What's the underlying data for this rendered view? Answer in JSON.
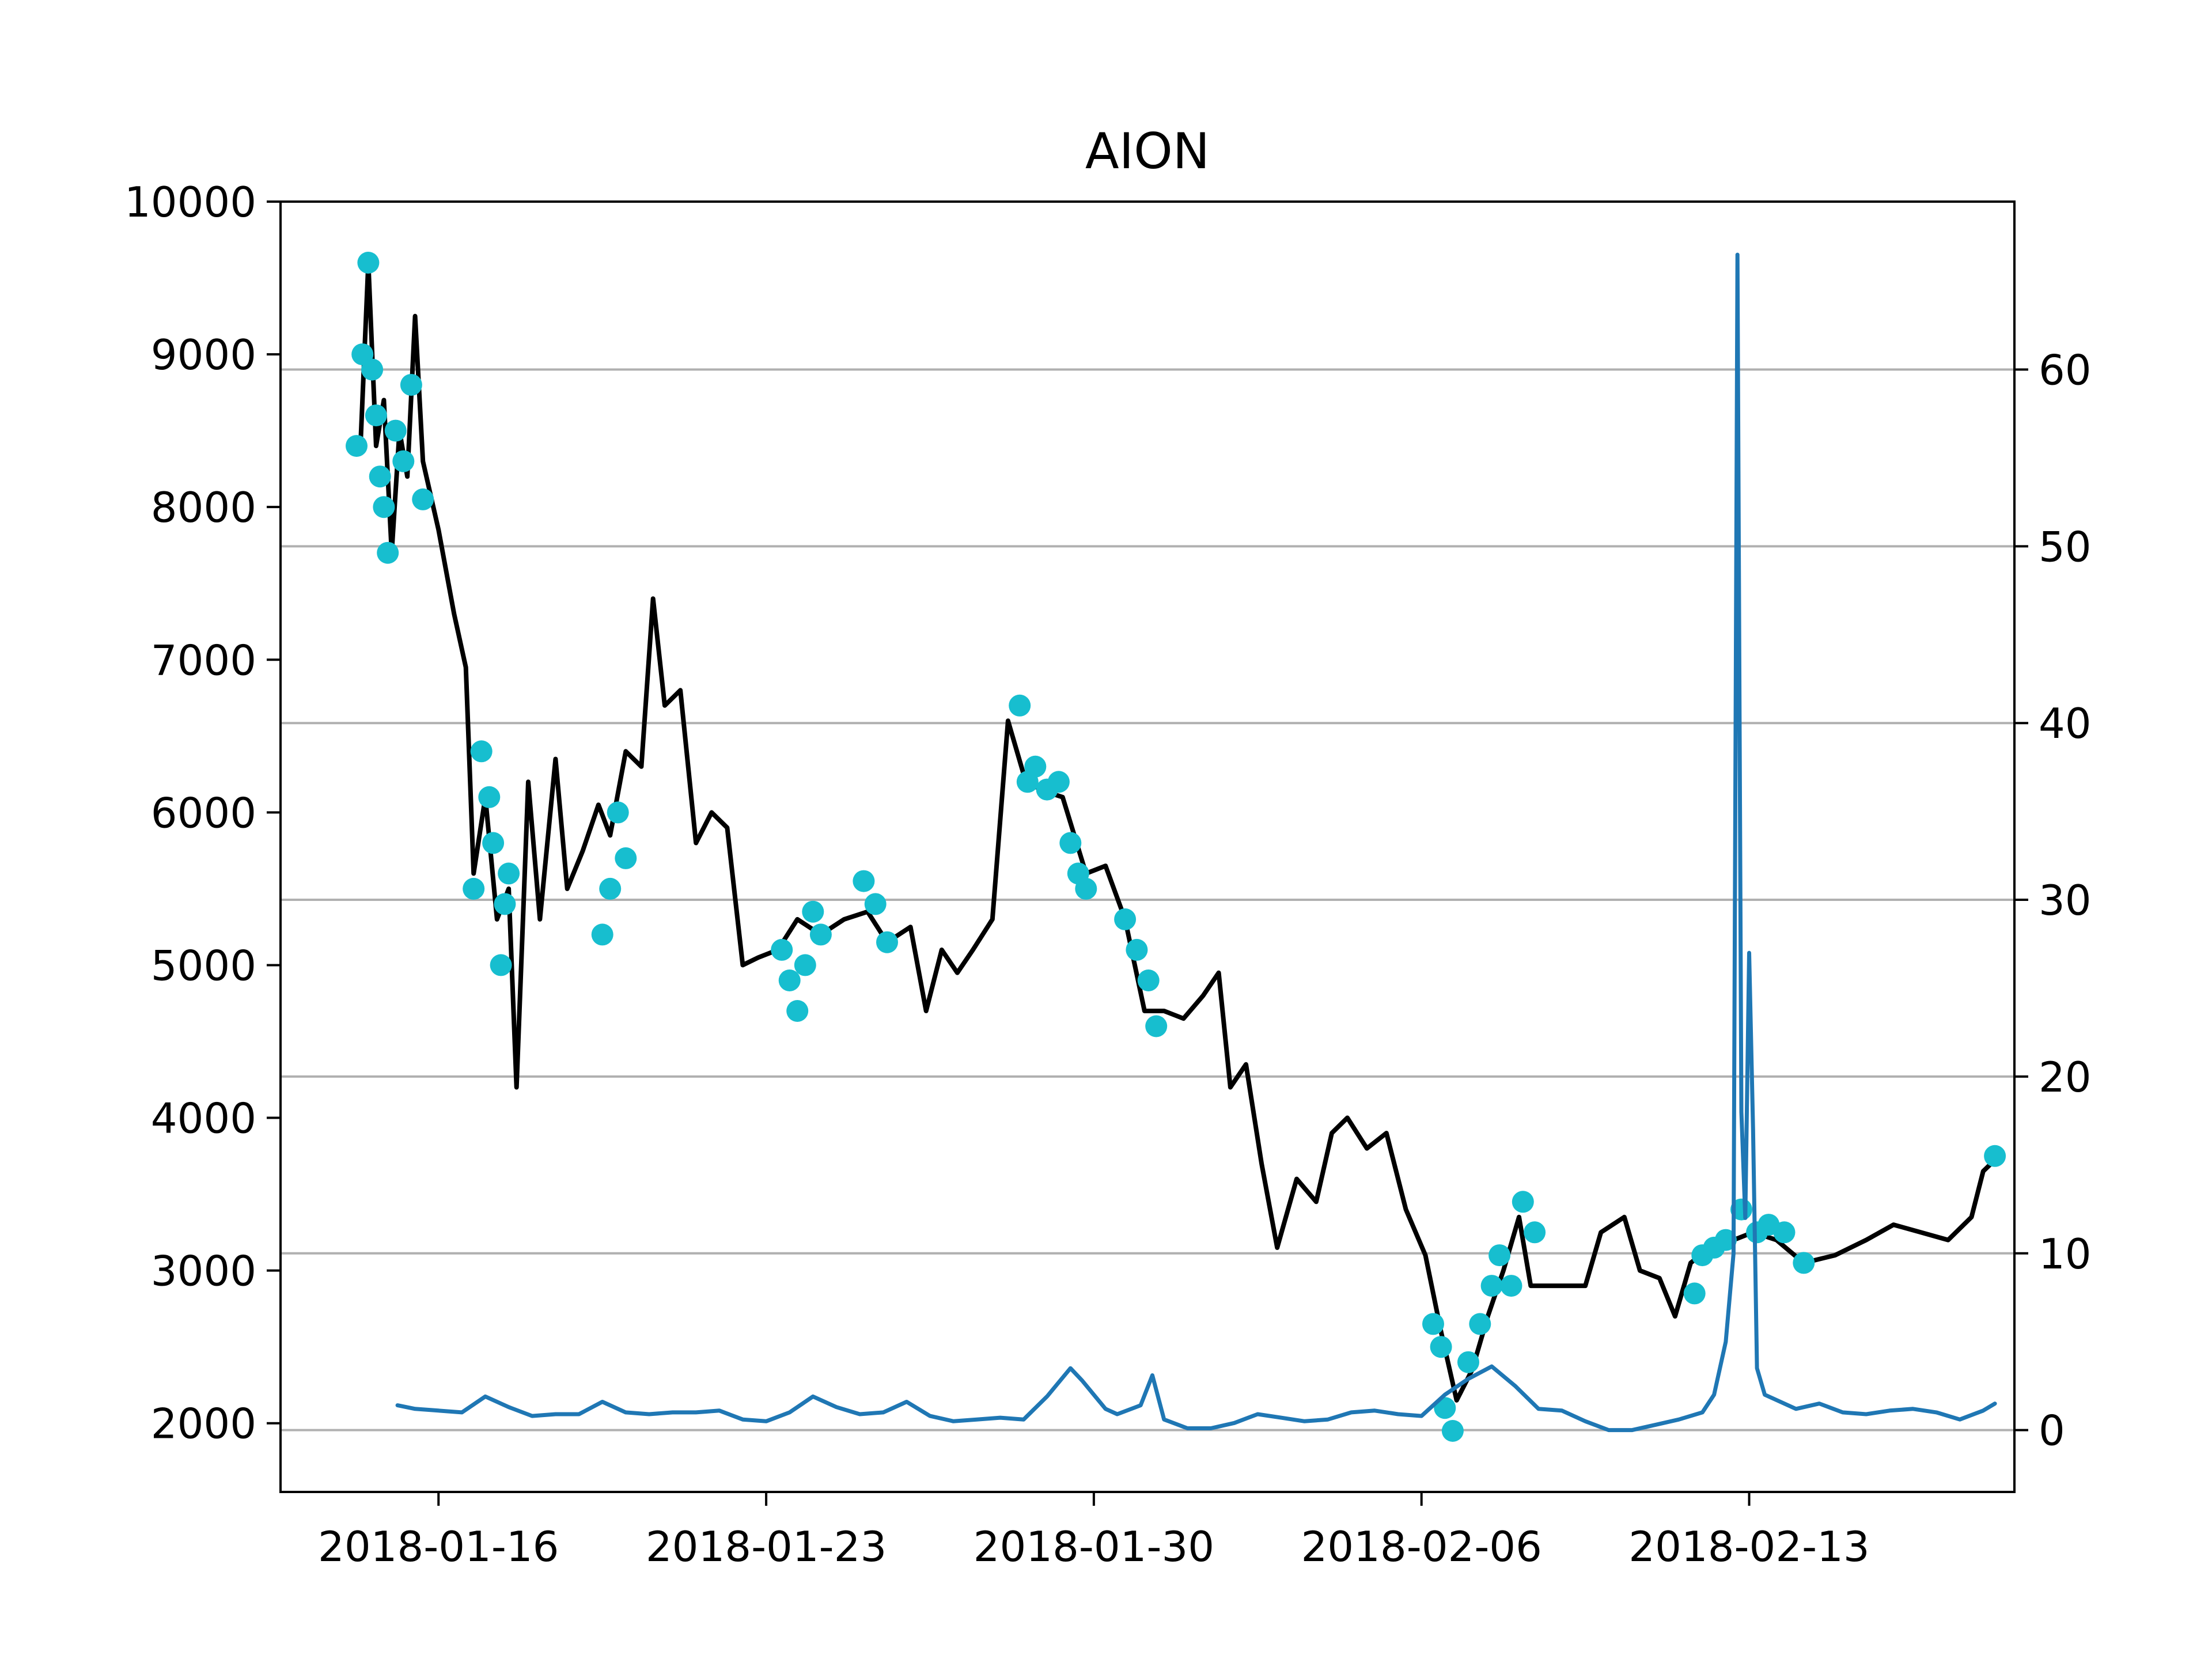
{
  "chart_data": {
    "type": "line",
    "title": "AION",
    "xlabel": "",
    "ylabel": "",
    "y2label": "",
    "x_ticks": [
      "2018-01-16",
      "2018-01-23",
      "2018-01-30",
      "2018-02-06",
      "2018-02-13"
    ],
    "xlim": [
      "2018-01-12 15:00",
      "2018-02-18 16:00"
    ],
    "ylim": [
      1550,
      10000
    ],
    "y_ticks": [
      2000,
      3000,
      4000,
      5000,
      6000,
      7000,
      8000,
      9000,
      10000
    ],
    "y2lim": [
      -3.5,
      69.5
    ],
    "y2_ticks": [
      0,
      10,
      20,
      30,
      40,
      50,
      60
    ],
    "grid": "horizontal, right axis",
    "colors": {
      "price": "#000000",
      "markers": "#17becf",
      "secondary": "#1f77b4",
      "grid": "#b0b0b0"
    },
    "series": [
      {
        "axis": "left",
        "style": "line",
        "color": "#000000",
        "points": [
          [
            "2018-01-14 08:00",
            8400
          ],
          [
            "2018-01-14 12:00",
            9600
          ],
          [
            "2018-01-14 16:00",
            8400
          ],
          [
            "2018-01-14 20:00",
            8700
          ],
          [
            "2018-01-15 00:00",
            7700
          ],
          [
            "2018-01-15 04:00",
            8500
          ],
          [
            "2018-01-15 08:00",
            8200
          ],
          [
            "2018-01-15 12:00",
            9250
          ],
          [
            "2018-01-15 16:00",
            8300
          ],
          [
            "2018-01-16 00:00",
            7850
          ],
          [
            "2018-01-16 08:00",
            7300
          ],
          [
            "2018-01-16 14:00",
            6950
          ],
          [
            "2018-01-16 18:00",
            5600
          ],
          [
            "2018-01-17 00:00",
            6100
          ],
          [
            "2018-01-17 06:00",
            5300
          ],
          [
            "2018-01-17 12:00",
            5500
          ],
          [
            "2018-01-17 16:00",
            4200
          ],
          [
            "2018-01-17 22:00",
            6200
          ],
          [
            "2018-01-18 04:00",
            5300
          ],
          [
            "2018-01-18 12:00",
            6350
          ],
          [
            "2018-01-18 18:00",
            5500
          ],
          [
            "2018-01-19 02:00",
            5750
          ],
          [
            "2018-01-19 10:00",
            6050
          ],
          [
            "2018-01-19 16:00",
            5850
          ],
          [
            "2018-01-20 00:00",
            6400
          ],
          [
            "2018-01-20 08:00",
            6300
          ],
          [
            "2018-01-20 14:00",
            7400
          ],
          [
            "2018-01-20 20:00",
            6700
          ],
          [
            "2018-01-21 04:00",
            6800
          ],
          [
            "2018-01-21 12:00",
            5800
          ],
          [
            "2018-01-21 20:00",
            6000
          ],
          [
            "2018-01-22 04:00",
            5900
          ],
          [
            "2018-01-22 12:00",
            5000
          ],
          [
            "2018-01-22 20:00",
            5050
          ],
          [
            "2018-01-23 06:00",
            5100
          ],
          [
            "2018-01-23 16:00",
            5300
          ],
          [
            "2018-01-24 04:00",
            5200
          ],
          [
            "2018-01-24 16:00",
            5300
          ],
          [
            "2018-01-25 04:00",
            5350
          ],
          [
            "2018-01-25 14:00",
            5150
          ],
          [
            "2018-01-26 02:00",
            5250
          ],
          [
            "2018-01-26 10:00",
            4700
          ],
          [
            "2018-01-26 18:00",
            5100
          ],
          [
            "2018-01-27 02:00",
            4950
          ],
          [
            "2018-01-27 10:00",
            5100
          ],
          [
            "2018-01-27 20:00",
            5300
          ],
          [
            "2018-01-28 04:00",
            6600
          ],
          [
            "2018-01-28 12:00",
            6250
          ],
          [
            "2018-01-28 20:00",
            6150
          ],
          [
            "2018-01-29 08:00",
            6100
          ],
          [
            "2018-01-29 20:00",
            5600
          ],
          [
            "2018-01-30 06:00",
            5650
          ],
          [
            "2018-01-30 16:00",
            5300
          ],
          [
            "2018-01-31 02:00",
            4700
          ],
          [
            "2018-01-31 12:00",
            4700
          ],
          [
            "2018-01-31 22:00",
            4650
          ],
          [
            "2018-02-01 08:00",
            4800
          ],
          [
            "2018-02-01 16:00",
            4950
          ],
          [
            "2018-02-01 22:00",
            4200
          ],
          [
            "2018-02-02 06:00",
            4350
          ],
          [
            "2018-02-02 14:00",
            3700
          ],
          [
            "2018-02-02 22:00",
            3150
          ],
          [
            "2018-02-03 08:00",
            3600
          ],
          [
            "2018-02-03 18:00",
            3450
          ],
          [
            "2018-02-04 02:00",
            3900
          ],
          [
            "2018-02-04 10:00",
            4000
          ],
          [
            "2018-02-04 20:00",
            3800
          ],
          [
            "2018-02-05 06:00",
            3900
          ],
          [
            "2018-02-05 16:00",
            3400
          ],
          [
            "2018-02-06 02:00",
            3100
          ],
          [
            "2018-02-06 10:00",
            2600
          ],
          [
            "2018-02-06 18:00",
            2150
          ],
          [
            "2018-02-07 02:00",
            2350
          ],
          [
            "2018-02-07 10:00",
            2700
          ],
          [
            "2018-02-07 18:00",
            3000
          ],
          [
            "2018-02-08 02:00",
            3350
          ],
          [
            "2018-02-08 08:00",
            2900
          ],
          [
            "2018-02-09 12:00",
            2900
          ],
          [
            "2018-02-09 20:00",
            3250
          ],
          [
            "2018-02-10 08:00",
            3350
          ],
          [
            "2018-02-10 16:00",
            3000
          ],
          [
            "2018-02-11 02:00",
            2950
          ],
          [
            "2018-02-11 10:00",
            2700
          ],
          [
            "2018-02-11 18:00",
            3050
          ],
          [
            "2018-02-12 04:00",
            3150
          ],
          [
            "2018-02-12 16:00",
            3200
          ],
          [
            "2018-02-13 02:00",
            3250
          ],
          [
            "2018-02-13 14:00",
            3200
          ],
          [
            "2018-02-14 04:00",
            3050
          ],
          [
            "2018-02-14 20:00",
            3100
          ],
          [
            "2018-02-15 12:00",
            3200
          ],
          [
            "2018-02-16 02:00",
            3300
          ],
          [
            "2018-02-16 16:00",
            3250
          ],
          [
            "2018-02-17 06:00",
            3200
          ],
          [
            "2018-02-17 18:00",
            3350
          ],
          [
            "2018-02-18 00:00",
            3650
          ],
          [
            "2018-02-18 04:00",
            3700
          ]
        ]
      },
      {
        "axis": "left",
        "style": "scatter",
        "color": "#17becf",
        "points": [
          [
            "2018-01-14 06:00",
            8400
          ],
          [
            "2018-01-14 09:00",
            9000
          ],
          [
            "2018-01-14 12:00",
            9600
          ],
          [
            "2018-01-14 14:00",
            8900
          ],
          [
            "2018-01-14 16:00",
            8600
          ],
          [
            "2018-01-14 18:00",
            8200
          ],
          [
            "2018-01-14 20:00",
            8000
          ],
          [
            "2018-01-14 22:00",
            7700
          ],
          [
            "2018-01-15 02:00",
            8500
          ],
          [
            "2018-01-15 06:00",
            8300
          ],
          [
            "2018-01-15 10:00",
            8800
          ],
          [
            "2018-01-15 16:00",
            8050
          ],
          [
            "2018-01-16 18:00",
            5500
          ],
          [
            "2018-01-16 22:00",
            6400
          ],
          [
            "2018-01-17 02:00",
            6100
          ],
          [
            "2018-01-17 04:00",
            5800
          ],
          [
            "2018-01-17 08:00",
            5000
          ],
          [
            "2018-01-17 10:00",
            5400
          ],
          [
            "2018-01-17 12:00",
            5600
          ],
          [
            "2018-01-19 12:00",
            5200
          ],
          [
            "2018-01-19 16:00",
            5500
          ],
          [
            "2018-01-19 20:00",
            6000
          ],
          [
            "2018-01-20 00:00",
            5700
          ],
          [
            "2018-01-23 08:00",
            5100
          ],
          [
            "2018-01-23 12:00",
            4900
          ],
          [
            "2018-01-23 16:00",
            4700
          ],
          [
            "2018-01-23 20:00",
            5000
          ],
          [
            "2018-01-24 00:00",
            5350
          ],
          [
            "2018-01-24 04:00",
            5200
          ],
          [
            "2018-01-25 02:00",
            5550
          ],
          [
            "2018-01-25 08:00",
            5400
          ],
          [
            "2018-01-25 14:00",
            5150
          ],
          [
            "2018-01-28 10:00",
            6700
          ],
          [
            "2018-01-28 14:00",
            6200
          ],
          [
            "2018-01-28 18:00",
            6300
          ],
          [
            "2018-01-29 00:00",
            6150
          ],
          [
            "2018-01-29 06:00",
            6200
          ],
          [
            "2018-01-29 12:00",
            5800
          ],
          [
            "2018-01-29 16:00",
            5600
          ],
          [
            "2018-01-29 20:00",
            5500
          ],
          [
            "2018-01-30 16:00",
            5300
          ],
          [
            "2018-01-30 22:00",
            5100
          ],
          [
            "2018-01-31 04:00",
            4900
          ],
          [
            "2018-01-31 08:00",
            4600
          ],
          [
            "2018-02-06 06:00",
            2650
          ],
          [
            "2018-02-06 10:00",
            2500
          ],
          [
            "2018-02-06 12:00",
            2100
          ],
          [
            "2018-02-06 16:00",
            1950
          ],
          [
            "2018-02-07 00:00",
            2400
          ],
          [
            "2018-02-07 06:00",
            2650
          ],
          [
            "2018-02-07 12:00",
            2900
          ],
          [
            "2018-02-07 16:00",
            3100
          ],
          [
            "2018-02-07 22:00",
            2900
          ],
          [
            "2018-02-08 04:00",
            3450
          ],
          [
            "2018-02-08 10:00",
            3250
          ],
          [
            "2018-02-11 20:00",
            2850
          ],
          [
            "2018-02-12 00:00",
            3100
          ],
          [
            "2018-02-12 06:00",
            3150
          ],
          [
            "2018-02-12 12:00",
            3200
          ],
          [
            "2018-02-12 20:00",
            3400
          ],
          [
            "2018-02-13 04:00",
            3250
          ],
          [
            "2018-02-13 10:00",
            3300
          ],
          [
            "2018-02-13 18:00",
            3250
          ],
          [
            "2018-02-14 04:00",
            3050
          ],
          [
            "2018-02-18 06:00",
            3750
          ]
        ]
      },
      {
        "axis": "right",
        "style": "line",
        "color": "#1f77b4",
        "points": [
          [
            "2018-01-15 03:00",
            1.4
          ],
          [
            "2018-01-15 12:00",
            1.2
          ],
          [
            "2018-01-16 00:00",
            1.1
          ],
          [
            "2018-01-16 12:00",
            1.0
          ],
          [
            "2018-01-17 00:00",
            1.9
          ],
          [
            "2018-01-17 12:00",
            1.3
          ],
          [
            "2018-01-18 00:00",
            0.8
          ],
          [
            "2018-01-18 12:00",
            0.9
          ],
          [
            "2018-01-19 00:00",
            0.9
          ],
          [
            "2018-01-19 12:00",
            1.6
          ],
          [
            "2018-01-20 00:00",
            1.0
          ],
          [
            "2018-01-20 12:00",
            0.9
          ],
          [
            "2018-01-21 00:00",
            1.0
          ],
          [
            "2018-01-21 12:00",
            1.0
          ],
          [
            "2018-01-22 00:00",
            1.1
          ],
          [
            "2018-01-22 12:00",
            0.6
          ],
          [
            "2018-01-23 00:00",
            0.5
          ],
          [
            "2018-01-23 12:00",
            1.0
          ],
          [
            "2018-01-24 00:00",
            1.9
          ],
          [
            "2018-01-24 12:00",
            1.3
          ],
          [
            "2018-01-25 00:00",
            0.9
          ],
          [
            "2018-01-25 12:00",
            1.0
          ],
          [
            "2018-01-26 00:00",
            1.6
          ],
          [
            "2018-01-26 12:00",
            0.8
          ],
          [
            "2018-01-27 00:00",
            0.5
          ],
          [
            "2018-01-27 12:00",
            0.6
          ],
          [
            "2018-01-28 00:00",
            0.7
          ],
          [
            "2018-01-28 12:00",
            0.6
          ],
          [
            "2018-01-29 00:00",
            1.9
          ],
          [
            "2018-01-29 12:00",
            3.5
          ],
          [
            "2018-01-29 18:00",
            2.8
          ],
          [
            "2018-01-30 06:00",
            1.2
          ],
          [
            "2018-01-30 12:00",
            0.9
          ],
          [
            "2018-01-31 00:00",
            1.4
          ],
          [
            "2018-01-31 06:00",
            3.1
          ],
          [
            "2018-01-31 12:00",
            0.6
          ],
          [
            "2018-02-01 00:00",
            0.1
          ],
          [
            "2018-02-01 12:00",
            0.1
          ],
          [
            "2018-02-02 00:00",
            0.4
          ],
          [
            "2018-02-02 12:00",
            0.9
          ],
          [
            "2018-02-03 00:00",
            0.7
          ],
          [
            "2018-02-03 12:00",
            0.5
          ],
          [
            "2018-02-04 00:00",
            0.6
          ],
          [
            "2018-02-04 12:00",
            1.0
          ],
          [
            "2018-02-05 00:00",
            1.1
          ],
          [
            "2018-02-05 12:00",
            0.9
          ],
          [
            "2018-02-06 00:00",
            0.8
          ],
          [
            "2018-02-06 12:00",
            2.0
          ],
          [
            "2018-02-07 00:00",
            2.9
          ],
          [
            "2018-02-07 12:00",
            3.6
          ],
          [
            "2018-02-08 00:00",
            2.5
          ],
          [
            "2018-02-08 12:00",
            1.2
          ],
          [
            "2018-02-09 00:00",
            1.1
          ],
          [
            "2018-02-09 12:00",
            0.5
          ],
          [
            "2018-02-10 00:00",
            0.0
          ],
          [
            "2018-02-10 12:00",
            0.0
          ],
          [
            "2018-02-11 00:00",
            0.3
          ],
          [
            "2018-02-11 12:00",
            0.6
          ],
          [
            "2018-02-12 00:00",
            1.0
          ],
          [
            "2018-02-12 06:00",
            2.0
          ],
          [
            "2018-02-12 12:00",
            5.0
          ],
          [
            "2018-02-12 16:00",
            10.0
          ],
          [
            "2018-02-12 18:00",
            66.5
          ],
          [
            "2018-02-12 20:00",
            18.0
          ],
          [
            "2018-02-12 22:00",
            12.0
          ],
          [
            "2018-02-13 00:00",
            27.0
          ],
          [
            "2018-02-13 02:00",
            17.0
          ],
          [
            "2018-02-13 04:00",
            3.5
          ],
          [
            "2018-02-13 08:00",
            2.0
          ],
          [
            "2018-02-14 00:00",
            1.2
          ],
          [
            "2018-02-14 12:00",
            1.5
          ],
          [
            "2018-02-15 00:00",
            1.0
          ],
          [
            "2018-02-15 12:00",
            0.9
          ],
          [
            "2018-02-16 00:00",
            1.1
          ],
          [
            "2018-02-16 12:00",
            1.2
          ],
          [
            "2018-02-17 00:00",
            1.0
          ],
          [
            "2018-02-17 12:00",
            0.6
          ],
          [
            "2018-02-18 00:00",
            1.1
          ],
          [
            "2018-02-18 06:00",
            1.5
          ]
        ]
      }
    ]
  }
}
